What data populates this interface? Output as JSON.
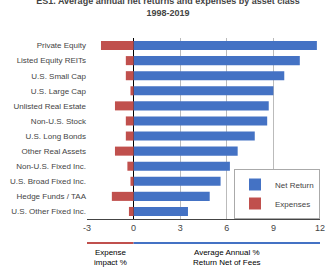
{
  "chart_data": {
    "type": "bar",
    "orientation": "horizontal",
    "title": "ES1. Average annual net returns and expenses by asset class\n1998-2019",
    "categories": [
      "U.S. Other Fixed Inc.",
      "Hedge Funds / TAA",
      "U.S. Broad Fixed Inc.",
      "Non-U.S. Fixed Inc.",
      "Other Real Assets",
      "U.S. Long Bonds",
      "Non-U.S. Stock",
      "Unlisted Real Estate",
      "U.S. Large Cap",
      "U.S. Small Cap",
      "Listed Equity REITs",
      "Private Equity"
    ],
    "series": [
      {
        "name": "Net Return",
        "color": "#4472C4",
        "values": [
          3.5,
          4.9,
          5.6,
          6.2,
          6.7,
          7.8,
          8.6,
          8.7,
          9.0,
          9.7,
          10.7,
          11.8
        ]
      },
      {
        "name": "Expenses",
        "color": "#C0504D",
        "values": [
          -0.3,
          -1.4,
          -0.2,
          -0.4,
          -1.2,
          -0.5,
          -0.5,
          -1.2,
          -0.2,
          -0.5,
          -0.5,
          -2.1
        ]
      }
    ],
    "xlim": [
      -3,
      12
    ],
    "xticks": [
      -3,
      0,
      3,
      6,
      9,
      12
    ],
    "grid": true,
    "legend": "lower right",
    "annotations": [
      "Expense\nimpact %",
      "Average Annual %\nReturn Net of Fees"
    ]
  }
}
